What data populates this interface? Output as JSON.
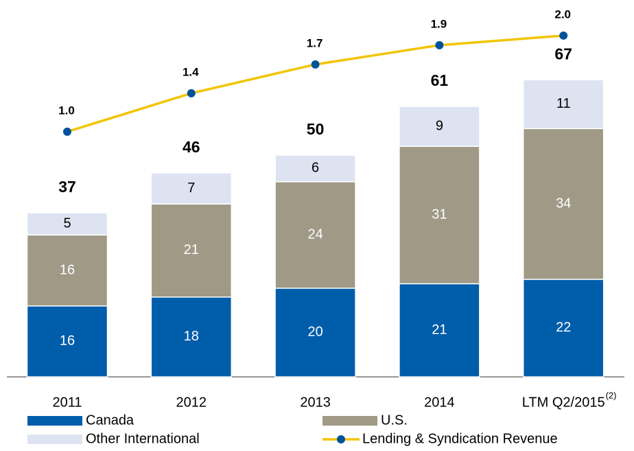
{
  "chart_data": {
    "type": "bar",
    "stacked": true,
    "categories": [
      "2011",
      "2012",
      "2013",
      "2014",
      "LTM Q2/2015"
    ],
    "category_superscripts": [
      null,
      null,
      null,
      null,
      "(2)"
    ],
    "series": [
      {
        "name": "Canada",
        "color": "#005daa",
        "values": [
          16,
          18,
          20,
          21,
          22
        ]
      },
      {
        "name": "U.S.",
        "color": "#9f9986",
        "values": [
          16,
          21,
          24,
          31,
          34
        ]
      },
      {
        "name": "Other International",
        "color": "#dde3f1",
        "values": [
          5,
          7,
          6,
          9,
          11
        ]
      },
      {
        "name": "Lending & Syndication Revenue",
        "type": "line",
        "axis": "y2",
        "color": "#f2c400",
        "marker_color": "#00539b",
        "values": [
          1.0,
          1.4,
          1.7,
          1.9,
          2.0
        ],
        "value_labels": [
          "1.0",
          "1.4",
          "1.7",
          "1.9",
          "2.0"
        ]
      }
    ],
    "totals": [
      37,
      46,
      50,
      61,
      67
    ],
    "ylim": [
      0,
      85
    ],
    "y2lim": [
      -1.55,
      2.37
    ]
  }
}
